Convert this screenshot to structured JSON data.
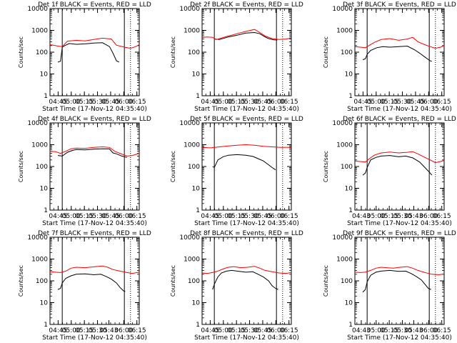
{
  "chart_data": [
    {
      "type": "line",
      "title": "Det 1f BLACK = Events, RED = LLD",
      "xlabel": "Start Time (17-Nov-12 04:35:40)",
      "ylabel": "Counts/sec",
      "yscale": "log",
      "ylim": [
        1,
        10000
      ],
      "y_tick_labels": [
        "1",
        "10",
        "100",
        "1000",
        "10000"
      ],
      "xlim": [
        0,
        102
      ],
      "x_tick_labels": [
        "04:45",
        "05:00",
        "05:15",
        "05:30",
        "05:45",
        "06:00",
        "06:15"
      ],
      "x_tick_values": [
        9.3,
        24.3,
        39.3,
        54.3,
        69.3,
        84.3,
        99.3
      ],
      "solid_vlines": [
        14,
        85
      ],
      "dotted_vlines": [
        92
      ],
      "series": [
        {
          "color": "#000000",
          "x": [
            9,
            12,
            14,
            17,
            22,
            30,
            40,
            50,
            60,
            68,
            72,
            76,
            79
          ],
          "y": [
            35,
            38,
            170,
            200,
            250,
            230,
            240,
            260,
            270,
            180,
            90,
            40,
            35
          ]
        },
        {
          "color": "#ff0000",
          "x": [
            0,
            4,
            9,
            14,
            20,
            30,
            40,
            50,
            60,
            70,
            76,
            85,
            92,
            98,
            102
          ],
          "y": [
            220,
            210,
            190,
            180,
            320,
            350,
            330,
            380,
            440,
            400,
            210,
            170,
            150,
            180,
            220
          ]
        }
      ]
    },
    {
      "type": "line",
      "title": "Det 2f BLACK = Events, RED = LLD",
      "xlabel": "Start Time (17-Nov-12 04:35:40)",
      "ylabel": "Counts/sec",
      "yscale": "log",
      "ylim": [
        1,
        10000
      ],
      "y_tick_labels": [
        "1",
        "10",
        "100",
        "1000",
        "10000"
      ],
      "xlim": [
        0,
        102
      ],
      "x_tick_labels": [
        "04:45",
        "05:00",
        "05:15",
        "05:30",
        "05:45",
        "06:00",
        "06:15"
      ],
      "x_tick_values": [
        9.3,
        24.3,
        39.3,
        54.3,
        69.3,
        84.3,
        99.3
      ],
      "solid_vlines": [
        14,
        85
      ],
      "dotted_vlines": [
        92
      ],
      "series": [
        {
          "color": "#000000",
          "x": [
            14,
            20,
            30,
            40,
            50,
            60,
            66,
            72,
            76,
            82,
            86
          ],
          "y": [
            400,
            380,
            500,
            600,
            750,
            800,
            700,
            500,
            420,
            370,
            360
          ]
        },
        {
          "color": "#ff0000",
          "x": [
            0,
            6,
            12,
            16,
            20,
            30,
            40,
            50,
            60,
            66,
            72,
            80,
            88,
            96,
            102
          ],
          "y": [
            480,
            500,
            480,
            380,
            420,
            550,
            700,
            900,
            1100,
            800,
            550,
            420,
            380,
            400,
            450
          ]
        }
      ]
    },
    {
      "type": "line",
      "title": "Det 3f BLACK = Events, RED = LLD",
      "xlabel": "Start Time (17-Nov-12 04:35:40)",
      "ylabel": "Counts/sec",
      "yscale": "log",
      "ylim": [
        1,
        10000
      ],
      "y_tick_labels": [
        "1",
        "10",
        "100",
        "1000",
        "10000"
      ],
      "xlim": [
        0,
        102
      ],
      "x_tick_labels": [
        "04:45",
        "05:00",
        "05:15",
        "05:30",
        "05:45",
        "06:00",
        "06:15"
      ],
      "x_tick_values": [
        9.3,
        24.3,
        39.3,
        54.3,
        69.3,
        84.3,
        99.3
      ],
      "solid_vlines": [
        14,
        85
      ],
      "dotted_vlines": [
        92
      ],
      "series": [
        {
          "color": "#000000",
          "x": [
            9,
            12,
            14,
            18,
            25,
            32,
            40,
            50,
            60,
            68,
            74,
            80,
            86,
            88
          ],
          "y": [
            45,
            50,
            80,
            120,
            160,
            180,
            170,
            180,
            190,
            130,
            90,
            60,
            40,
            38
          ]
        },
        {
          "color": "#ff0000",
          "x": [
            0,
            6,
            12,
            16,
            22,
            30,
            40,
            50,
            60,
            66,
            72,
            80,
            86,
            92,
            98,
            102
          ],
          "y": [
            180,
            170,
            160,
            200,
            280,
            380,
            420,
            350,
            400,
            480,
            300,
            220,
            180,
            150,
            170,
            200
          ]
        }
      ]
    },
    {
      "type": "line",
      "title": "Det 4f BLACK = Events, RED = LLD",
      "xlabel": "Start Time (17-Nov-12 04:35:40)",
      "ylabel": "Counts/sec",
      "yscale": "log",
      "ylim": [
        1,
        10000
      ],
      "y_tick_labels": [
        "1",
        "10",
        "100",
        "1000",
        "10000"
      ],
      "xlim": [
        0,
        102
      ],
      "x_tick_labels": [
        "04:45",
        "05:00",
        "05:15",
        "05:30",
        "05:45",
        "06:00",
        "06:15"
      ],
      "x_tick_values": [
        9.3,
        24.3,
        39.3,
        54.3,
        69.3,
        84.3,
        99.3
      ],
      "solid_vlines": [
        14,
        85
      ],
      "dotted_vlines": [
        92
      ],
      "series": [
        {
          "color": "#000000",
          "x": [
            9,
            14,
            20,
            26,
            30,
            40,
            50,
            60,
            68,
            72,
            76,
            82,
            88
          ],
          "y": [
            320,
            300,
            450,
            550,
            600,
            580,
            620,
            650,
            640,
            420,
            380,
            300,
            260
          ]
        },
        {
          "color": "#ff0000",
          "x": [
            0,
            6,
            12,
            18,
            24,
            30,
            40,
            50,
            60,
            68,
            74,
            80,
            88,
            94,
            102
          ],
          "y": [
            500,
            480,
            400,
            500,
            650,
            700,
            680,
            750,
            800,
            750,
            500,
            400,
            300,
            320,
            400
          ]
        }
      ]
    },
    {
      "type": "line",
      "title": "Det 5f BLACK = Events, RED = LLD",
      "xlabel": "Start Time (17-Nov-12 04:35:40)",
      "ylabel": "Counts/sec",
      "yscale": "log",
      "ylim": [
        1,
        10000
      ],
      "y_tick_labels": [
        "1",
        "10",
        "100",
        "1000",
        "10000"
      ],
      "xlim": [
        0,
        102
      ],
      "x_tick_labels": [
        "04:45",
        "05:00",
        "05:15",
        "05:30",
        "05:45",
        "06:00",
        "06:15"
      ],
      "x_tick_values": [
        9.3,
        24.3,
        39.3,
        54.3,
        69.3,
        84.3,
        99.3
      ],
      "solid_vlines": [
        14,
        85
      ],
      "dotted_vlines": [
        92
      ],
      "series": [
        {
          "color": "#000000",
          "x": [
            12,
            14,
            18,
            24,
            30,
            40,
            50,
            58,
            64,
            70,
            76,
            80,
            84
          ],
          "y": [
            100,
            90,
            200,
            280,
            330,
            350,
            330,
            290,
            230,
            180,
            120,
            90,
            70
          ]
        },
        {
          "color": "#ff0000",
          "x": [
            0,
            10,
            20,
            30,
            40,
            50,
            60,
            70,
            80,
            90,
            102
          ],
          "y": [
            750,
            720,
            800,
            880,
            950,
            1000,
            940,
            850,
            800,
            750,
            760
          ]
        }
      ]
    },
    {
      "type": "line",
      "title": "Det 6f BLACK = Events, RED = LLD",
      "xlabel": "Start Time (17-Nov-12 04:35:40)",
      "ylabel": "Counts/sec",
      "yscale": "log",
      "ylim": [
        1,
        10000
      ],
      "y_tick_labels": [
        "1",
        "10",
        "100",
        "1000",
        "10000"
      ],
      "xlim": [
        0,
        102
      ],
      "x_tick_labels": [
        "04:43",
        "05:00",
        "05:15",
        "05:30",
        "05:43",
        "06:00",
        "06:15"
      ],
      "x_tick_values": [
        7.3,
        24.3,
        39.3,
        54.3,
        67.3,
        84.3,
        99.3
      ],
      "solid_vlines": [
        14,
        85
      ],
      "dotted_vlines": [
        92
      ],
      "series": [
        {
          "color": "#000000",
          "x": [
            9,
            12,
            14,
            18,
            24,
            30,
            40,
            50,
            58,
            66,
            70,
            74,
            80,
            86,
            88
          ],
          "y": [
            40,
            50,
            90,
            200,
            260,
            300,
            320,
            280,
            300,
            250,
            200,
            160,
            90,
            50,
            40
          ]
        },
        {
          "color": "#ff0000",
          "x": [
            0,
            6,
            12,
            16,
            22,
            30,
            40,
            50,
            60,
            66,
            72,
            80,
            86,
            92,
            98,
            102
          ],
          "y": [
            180,
            170,
            160,
            220,
            330,
            420,
            460,
            420,
            450,
            480,
            380,
            260,
            200,
            150,
            170,
            190
          ]
        }
      ]
    },
    {
      "type": "line",
      "title": "Det 7f BLACK = Events, RED = LLD",
      "xlabel": "Start Time (17-Nov-12 04:35:40)",
      "ylabel": "Counts/sec",
      "yscale": "log",
      "ylim": [
        1,
        10000
      ],
      "y_tick_labels": [
        "1",
        "10",
        "100",
        "1000",
        "10000"
      ],
      "xlim": [
        0,
        102
      ],
      "x_tick_labels": [
        "04:45",
        "05:00",
        "05:15",
        "05:30",
        "05:43",
        "06:00",
        "06:15"
      ],
      "x_tick_values": [
        9.3,
        24.3,
        39.3,
        54.3,
        67.3,
        84.3,
        99.3
      ],
      "solid_vlines": [
        14,
        85
      ],
      "dotted_vlines": [
        92
      ],
      "series": [
        {
          "color": "#000000",
          "x": [
            9,
            12,
            14,
            18,
            24,
            30,
            40,
            50,
            58,
            64,
            70,
            76,
            80,
            84,
            86
          ],
          "y": [
            40,
            45,
            80,
            130,
            170,
            200,
            210,
            190,
            200,
            160,
            120,
            80,
            50,
            35,
            32
          ]
        },
        {
          "color": "#ff0000",
          "x": [
            0,
            6,
            12,
            18,
            24,
            30,
            40,
            50,
            60,
            66,
            72,
            80,
            88,
            94,
            102
          ],
          "y": [
            260,
            250,
            240,
            280,
            380,
            420,
            400,
            440,
            480,
            420,
            330,
            280,
            240,
            220,
            250
          ]
        }
      ]
    },
    {
      "type": "line",
      "title": "Det 8f BLACK = Events, RED = LLD",
      "xlabel": "Start Time (17-Nov-12 04:35:40)",
      "ylabel": "Counts/sec",
      "yscale": "log",
      "ylim": [
        1,
        10000
      ],
      "y_tick_labels": [
        "1",
        "10",
        "100",
        "1000",
        "10000"
      ],
      "xlim": [
        0,
        102
      ],
      "x_tick_labels": [
        "04:45",
        "05:00",
        "05:15",
        "05:30",
        "05:45",
        "06:00",
        "06:15"
      ],
      "x_tick_values": [
        9.3,
        24.3,
        39.3,
        54.3,
        69.3,
        84.3,
        99.3
      ],
      "solid_vlines": [
        14,
        85
      ],
      "dotted_vlines": [
        92
      ],
      "series": [
        {
          "color": "#000000",
          "x": [
            12,
            14,
            18,
            22,
            28,
            34,
            40,
            50,
            58,
            64,
            70,
            76,
            80,
            84,
            87
          ],
          "y": [
            40,
            70,
            150,
            230,
            280,
            300,
            280,
            250,
            260,
            200,
            150,
            100,
            60,
            45,
            40
          ]
        },
        {
          "color": "#ff0000",
          "x": [
            0,
            6,
            12,
            18,
            24,
            30,
            36,
            44,
            52,
            60,
            66,
            72,
            80,
            88,
            96,
            102
          ],
          "y": [
            230,
            220,
            240,
            280,
            350,
            420,
            450,
            400,
            420,
            460,
            380,
            300,
            260,
            230,
            220,
            240
          ]
        }
      ]
    },
    {
      "type": "line",
      "title": "Det 9f BLACK = Events, RED = LLD",
      "xlabel": "Start Time (17-Nov-12 04:35:40)",
      "ylabel": "Counts/sec",
      "yscale": "log",
      "ylim": [
        1,
        10000
      ],
      "y_tick_labels": [
        "1",
        "10",
        "100",
        "1000",
        "10000"
      ],
      "xlim": [
        0,
        102
      ],
      "x_tick_labels": [
        "04:43",
        "05:00",
        "05:15",
        "05:30",
        "05:43",
        "06:00",
        "06:15"
      ],
      "x_tick_values": [
        7.3,
        24.3,
        39.3,
        54.3,
        67.3,
        84.3,
        99.3
      ],
      "solid_vlines": [
        14,
        85
      ],
      "dotted_vlines": [
        92
      ],
      "series": [
        {
          "color": "#000000",
          "x": [
            9,
            12,
            14,
            18,
            24,
            30,
            40,
            50,
            58,
            64,
            70,
            76,
            80,
            84,
            87
          ],
          "y": [
            30,
            40,
            90,
            180,
            250,
            280,
            300,
            270,
            280,
            220,
            160,
            110,
            70,
            45,
            40
          ]
        },
        {
          "color": "#ff0000",
          "x": [
            0,
            6,
            12,
            18,
            24,
            30,
            36,
            44,
            52,
            60,
            66,
            72,
            80,
            88,
            96,
            102
          ],
          "y": [
            250,
            240,
            250,
            300,
            380,
            420,
            400,
            380,
            420,
            450,
            380,
            300,
            240,
            200,
            190,
            210
          ]
        }
      ]
    }
  ]
}
